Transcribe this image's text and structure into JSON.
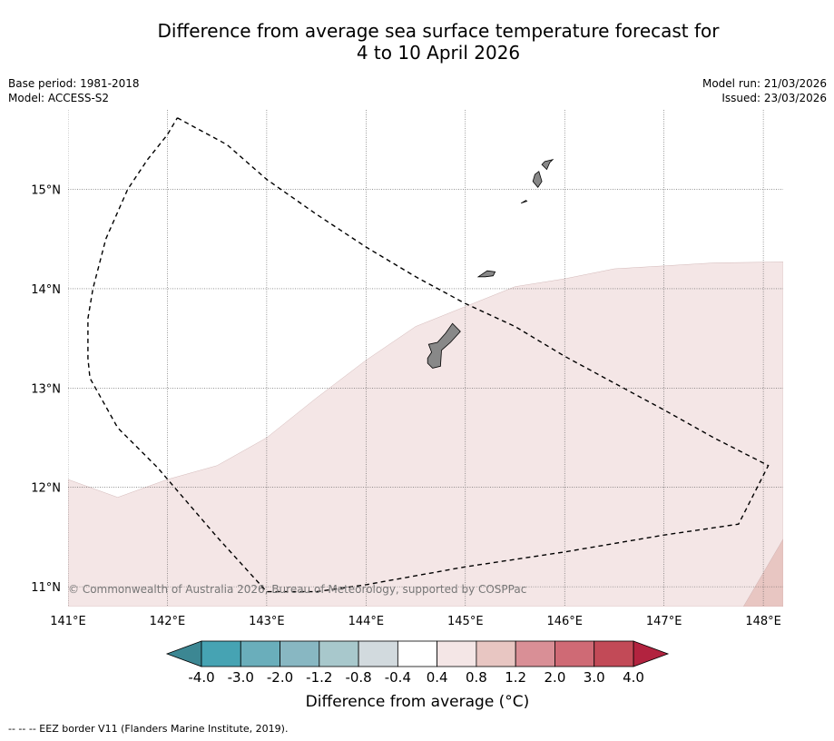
{
  "title": {
    "line1": "Difference from average sea surface temperature forecast for",
    "line2": "4 to 10 April 2026"
  },
  "meta_left": {
    "base_period": "Base period: 1981-2018",
    "model": "Model: ACCESS-S2"
  },
  "meta_right": {
    "model_run": "Model run: 21/03/2026",
    "issued": "Issued: 23/03/2026"
  },
  "map": {
    "lon_range": [
      141,
      148.2
    ],
    "lat_range": [
      10.8,
      15.8
    ],
    "lon_ticks": [
      141,
      142,
      143,
      144,
      145,
      146,
      147,
      148
    ],
    "lon_labels": [
      "141°E",
      "142°E",
      "143°E",
      "144°E",
      "145°E",
      "146°E",
      "147°E",
      "148°E"
    ],
    "lat_ticks": [
      11,
      12,
      13,
      14,
      15
    ],
    "lat_labels": [
      "11°N",
      "12°N",
      "13°N",
      "14°N",
      "15°N"
    ],
    "copyright": "© Commonwealth of Australia 2026, Bureau of Meteorology, supported by COSPPac",
    "anomaly_regions": [
      {
        "name": "anomaly-0.4-to-0.8",
        "color": "#f4e6e6",
        "coords": [
          [
            141,
            12.08
          ],
          [
            141.5,
            11.9
          ],
          [
            142,
            12.08
          ],
          [
            142.5,
            12.22
          ],
          [
            143,
            12.5
          ],
          [
            143.5,
            12.9
          ],
          [
            144,
            13.28
          ],
          [
            144.5,
            13.62
          ],
          [
            145,
            13.82
          ],
          [
            145.5,
            14.02
          ],
          [
            146,
            14.1
          ],
          [
            146.5,
            14.2
          ],
          [
            147,
            14.23
          ],
          [
            147.5,
            14.26
          ],
          [
            148.2,
            14.27
          ],
          [
            148.2,
            10.8
          ],
          [
            141,
            10.8
          ]
        ]
      },
      {
        "name": "anomaly-0.8-to-1.2",
        "color": "#e8c6c2",
        "coords": [
          [
            147.8,
            10.8
          ],
          [
            148.2,
            11.48
          ],
          [
            148.2,
            10.8
          ]
        ]
      }
    ],
    "islands": [
      {
        "name": "guam-island",
        "coords": [
          [
            144.62,
            13.25
          ],
          [
            144.67,
            13.2
          ],
          [
            144.75,
            13.22
          ],
          [
            144.76,
            13.38
          ],
          [
            144.85,
            13.46
          ],
          [
            144.95,
            13.57
          ],
          [
            144.87,
            13.65
          ],
          [
            144.8,
            13.55
          ],
          [
            144.72,
            13.46
          ],
          [
            144.63,
            13.44
          ],
          [
            144.66,
            13.36
          ],
          [
            144.62,
            13.3
          ]
        ]
      },
      {
        "name": "rota-island",
        "coords": [
          [
            145.13,
            14.12
          ],
          [
            145.22,
            14.18
          ],
          [
            145.3,
            14.17
          ],
          [
            145.28,
            14.13
          ],
          [
            145.2,
            14.12
          ]
        ]
      },
      {
        "name": "tinian-island",
        "coords": [
          [
            145.56,
            14.86
          ],
          [
            145.61,
            14.89
          ],
          [
            145.62,
            14.88
          ]
        ]
      },
      {
        "name": "saipan-island",
        "coords": [
          [
            145.68,
            15.08
          ],
          [
            145.73,
            15.02
          ],
          [
            145.77,
            15.08
          ],
          [
            145.74,
            15.18
          ],
          [
            145.7,
            15.15
          ]
        ]
      },
      {
        "name": "farallon-island",
        "coords": [
          [
            145.77,
            15.25
          ],
          [
            145.82,
            15.2
          ],
          [
            145.85,
            15.27
          ],
          [
            145.88,
            15.3
          ],
          [
            145.8,
            15.28
          ]
        ]
      }
    ],
    "eez_border": [
      [
        142.1,
        15.72
      ],
      [
        142.6,
        15.45
      ],
      [
        143,
        15.1
      ],
      [
        143.5,
        14.75
      ],
      [
        144,
        14.42
      ],
      [
        144.5,
        14.12
      ],
      [
        145,
        13.85
      ],
      [
        145.5,
        13.62
      ],
      [
        146,
        13.32
      ],
      [
        146.5,
        13.05
      ],
      [
        147,
        12.78
      ],
      [
        147.5,
        12.5
      ],
      [
        148.05,
        12.22
      ],
      [
        147.75,
        11.63
      ],
      [
        147,
        11.52
      ],
      [
        146,
        11.35
      ],
      [
        145,
        11.2
      ],
      [
        144,
        11.02
      ],
      [
        143.5,
        10.95
      ],
      [
        143,
        10.95
      ],
      [
        142.5,
        11.5
      ],
      [
        141.9,
        12.2
      ],
      [
        141.5,
        12.6
      ],
      [
        141.22,
        13.1
      ],
      [
        141.2,
        13.3
      ],
      [
        141.2,
        13.7
      ],
      [
        141.25,
        14
      ],
      [
        141.38,
        14.5
      ],
      [
        141.6,
        15
      ],
      [
        141.8,
        15.3
      ],
      [
        142,
        15.55
      ],
      [
        142.1,
        15.72
      ]
    ]
  },
  "colorbar": {
    "title": "Difference from average (°C)",
    "boundary_labels": [
      "-4.0",
      "-3.0",
      "-2.0",
      "-1.2",
      "-0.8",
      "-0.4",
      "0.4",
      "0.8",
      "1.2",
      "2.0",
      "3.0",
      "4.0"
    ],
    "bin_colors": [
      "#46a3b3",
      "#6aaebb",
      "#88b7c2",
      "#a8c8cc",
      "#d2dade",
      "#ffffff",
      "#f4e6e6",
      "#e8c6c2",
      "#d98f96",
      "#cf6a75",
      "#c24a57"
    ],
    "low_extend_color": "#3c8793",
    "high_extend_color": "#b2233f"
  },
  "footer": "--  --  -- EEZ border V11 (Flanders Marine Institute, 2019)."
}
